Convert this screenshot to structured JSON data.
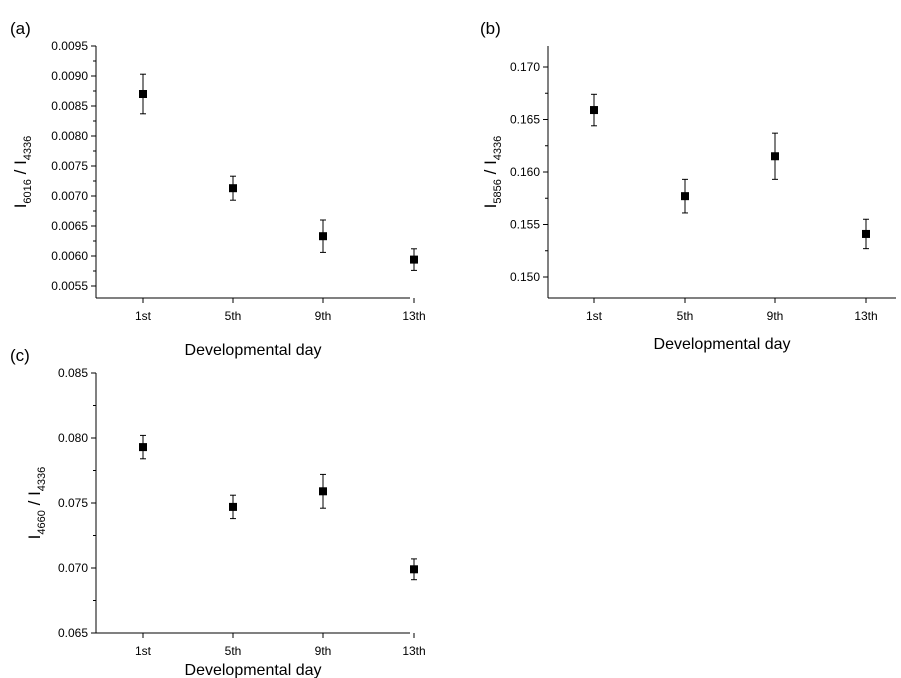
{
  "chart_data": [
    {
      "panel_label": "(a)",
      "type": "scatter",
      "categories": [
        "1st",
        "5th",
        "9th",
        "13th"
      ],
      "values": [
        0.0087,
        0.00713,
        0.00633,
        0.00594
      ],
      "errors": [
        0.00033,
        0.0002,
        0.00027,
        0.00018
      ],
      "xlabel": "Developmental day",
      "ylabel": {
        "i1": "I",
        "s1": "6016",
        "sep": " / ",
        "i2": "I",
        "s2": "4336"
      },
      "ylim": [
        0.0053,
        0.0095
      ],
      "yticks": [
        "0.0055",
        "0.0060",
        "0.0065",
        "0.0070",
        "0.0075",
        "0.0080",
        "0.0085",
        "0.0090",
        "0.0095"
      ],
      "ytick_values": [
        0.0055,
        0.006,
        0.0065,
        0.007,
        0.0075,
        0.008,
        0.0085,
        0.009,
        0.0095
      ],
      "grid": false,
      "marker": "square",
      "color": "#000000"
    },
    {
      "panel_label": "(b)",
      "type": "scatter",
      "categories": [
        "1st",
        "5th",
        "9th",
        "13th"
      ],
      "values": [
        0.1659,
        0.1577,
        0.1615,
        0.1541
      ],
      "errors": [
        0.0015,
        0.0016,
        0.0022,
        0.0014
      ],
      "xlabel": "Developmental day",
      "ylabel": {
        "i1": "I",
        "s1": "5856",
        "sep": " / ",
        "i2": "I",
        "s2": "4336"
      },
      "ylim": [
        0.148,
        0.172
      ],
      "yticks": [
        "0.150",
        "0.155",
        "0.160",
        "0.165",
        "0.170"
      ],
      "ytick_values": [
        0.15,
        0.155,
        0.16,
        0.165,
        0.17
      ],
      "grid": false,
      "marker": "square",
      "color": "#000000"
    },
    {
      "panel_label": "(c)",
      "type": "scatter",
      "categories": [
        "1st",
        "5th",
        "9th",
        "13th"
      ],
      "values": [
        0.0793,
        0.0747,
        0.0759,
        0.0699
      ],
      "errors": [
        0.0009,
        0.0009,
        0.0013,
        0.0008
      ],
      "xlabel": "Developmental day",
      "ylabel": {
        "i1": "I",
        "s1": "4660",
        "sep": " / ",
        "i2": "I",
        "s2": "4336"
      },
      "ylim": [
        0.065,
        0.085
      ],
      "yticks": [
        "0.065",
        "0.070",
        "0.075",
        "0.080",
        "0.085"
      ],
      "ytick_values": [
        0.065,
        0.07,
        0.075,
        0.08,
        0.085
      ],
      "grid": false,
      "marker": "square",
      "color": "#000000"
    }
  ]
}
